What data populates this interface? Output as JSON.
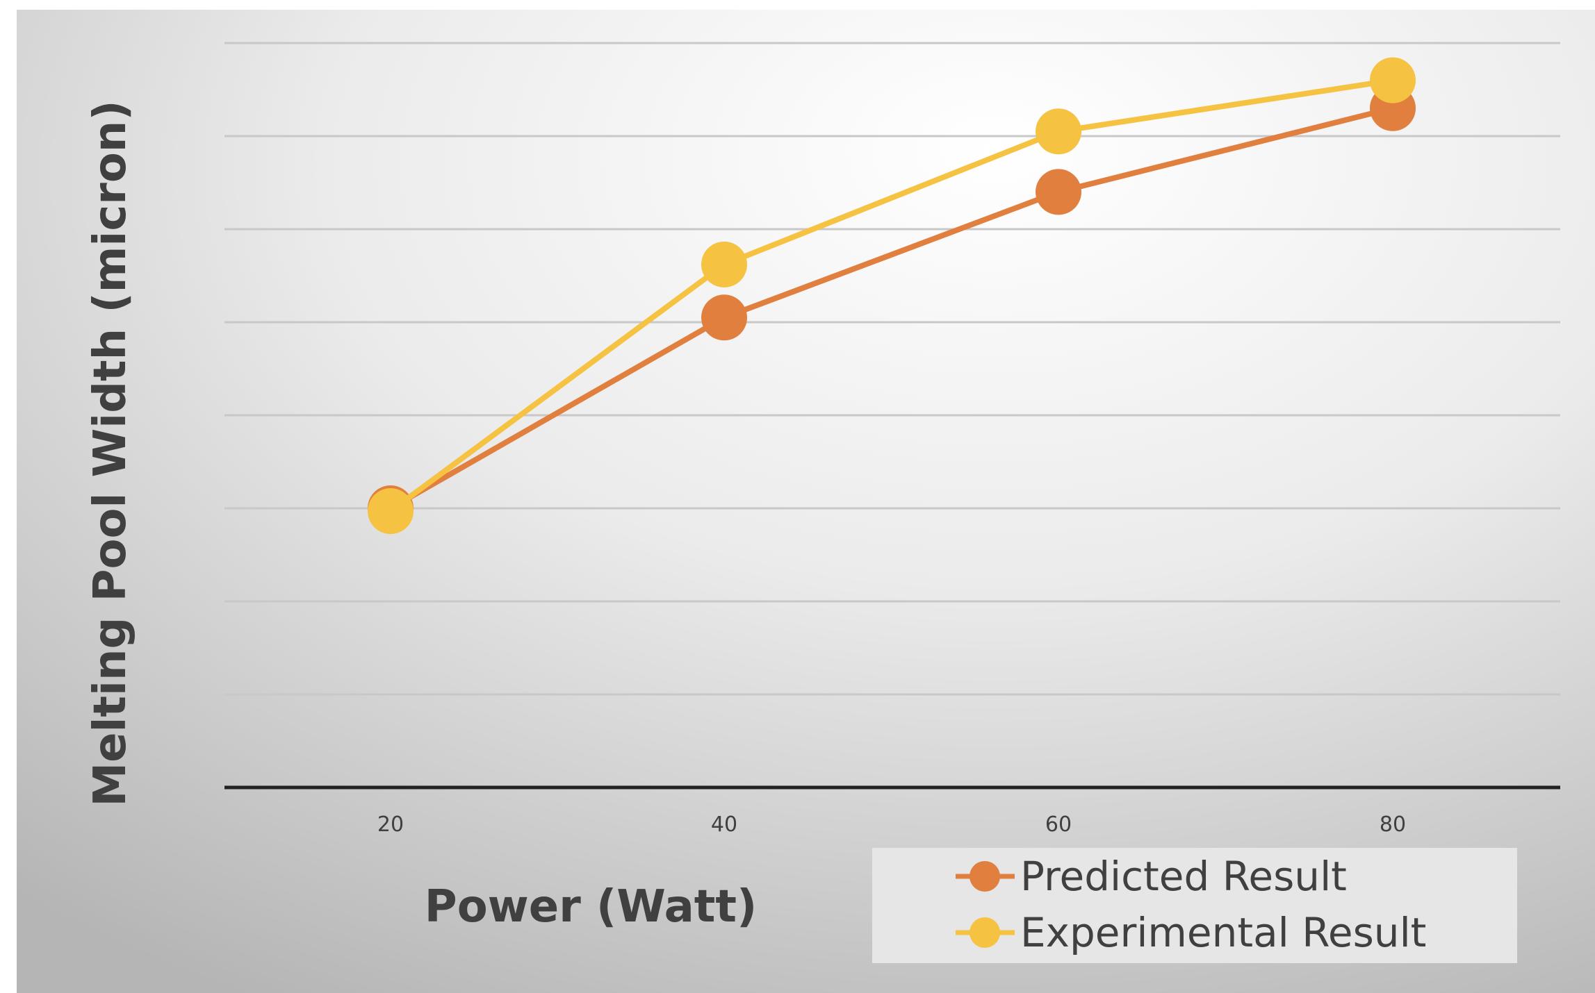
{
  "chart_data": {
    "type": "line",
    "title": "",
    "xlabel": "Power (Watt)",
    "ylabel": "Melting Pool Width (micron)",
    "categories": [
      "20",
      "40",
      "60",
      "80"
    ],
    "x": [
      20,
      40,
      60,
      80
    ],
    "y_tick_labels_shown": false,
    "ylim": [
      0,
      8
    ],
    "grid": true,
    "legend_position": "bottom-right",
    "series": [
      {
        "name": "Predicted Result",
        "values": [
          3.0,
          5.05,
          6.4,
          7.3
        ],
        "color": "#E07F3E"
      },
      {
        "name": "Experimental Result",
        "values": [
          2.97,
          5.62,
          7.05,
          7.6
        ],
        "color": "#F5C242"
      }
    ]
  },
  "colors": {
    "background_center": "#ffffff",
    "background_edge": "#bdbdbd",
    "gridline": "#c8c8c8",
    "axis_line": "#222222",
    "legend_box": "#e6e6e6",
    "text": "#404040"
  }
}
